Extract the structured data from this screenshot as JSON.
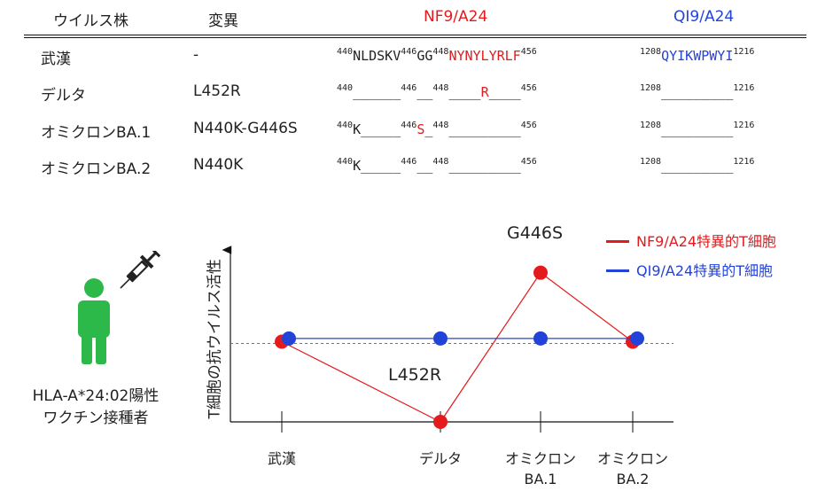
{
  "table": {
    "headers": {
      "strain": "ウイルス株",
      "mutation": "変異",
      "nf9": "NF9/A24",
      "qi9": "QI9/A24"
    },
    "rows": [
      {
        "name": "武漢",
        "mutation": "-",
        "nf9": [
          {
            "sup": "440"
          },
          {
            "text": "NLDSKV"
          },
          {
            "sup": "446"
          },
          {
            "text": "GG"
          },
          {
            "sup": "448"
          },
          {
            "text": "NYNYLYRLF",
            "color": "red"
          },
          {
            "sup": "456"
          }
        ],
        "qi9": [
          {
            "sup": "1208"
          },
          {
            "text": "QYIKWPWYI",
            "color": "blue"
          },
          {
            "sup": "1216"
          }
        ]
      },
      {
        "name": "デルタ",
        "mutation": "L452R",
        "nf9": [
          {
            "sup": "440"
          },
          {
            "text": "______"
          },
          {
            "sup": "446"
          },
          {
            "text": "__"
          },
          {
            "sup": "448"
          },
          {
            "text": "____"
          },
          {
            "text": "R",
            "color": "red"
          },
          {
            "text": "____"
          },
          {
            "sup": "456"
          }
        ],
        "qi9": [
          {
            "sup": "1208"
          },
          {
            "text": "_________"
          },
          {
            "sup": "1216"
          }
        ]
      },
      {
        "name": "オミクロンBA.1",
        "mutation": "N440K-G446S",
        "nf9": [
          {
            "sup": "440"
          },
          {
            "text": "K_____"
          },
          {
            "sup": "446"
          },
          {
            "text": "S",
            "color": "red"
          },
          {
            "text": "_"
          },
          {
            "sup": "448"
          },
          {
            "text": "_________"
          },
          {
            "sup": "456"
          }
        ],
        "qi9": [
          {
            "sup": "1208"
          },
          {
            "text": "_________"
          },
          {
            "sup": "1216"
          }
        ]
      },
      {
        "name": "オミクロンBA.2",
        "mutation": "N440K",
        "nf9": [
          {
            "sup": "440"
          },
          {
            "text": "K_____"
          },
          {
            "sup": "446"
          },
          {
            "text": "__"
          },
          {
            "sup": "448"
          },
          {
            "text": "_________"
          },
          {
            "sup": "456"
          }
        ],
        "qi9": [
          {
            "sup": "1208"
          },
          {
            "text": "_________"
          },
          {
            "sup": "1216"
          }
        ]
      }
    ]
  },
  "person": {
    "icon": "person-icon",
    "syringe_icon": "syringe-icon",
    "caption_line1": "HLA-A*24:02陽性",
    "caption_line2": "ワクチン接種者"
  },
  "colors": {
    "nf9": "#e41a1c",
    "qi9": "#2343d8",
    "person": "#2db84a",
    "baseline": "#4a78c8"
  },
  "chart_data": {
    "type": "line",
    "ylabel": "T細胞の抗ウイルス活性",
    "xlabel": "",
    "categories": [
      "武漢",
      "デルタ",
      "オミクロン\nBA.1",
      "オミクロン\nBA.2"
    ],
    "category_lines": [
      [
        "武漢"
      ],
      [
        "デルタ"
      ],
      [
        "オミクロン",
        "BA.1"
      ],
      [
        "オミクロン",
        "BA.2"
      ]
    ],
    "ylim": [
      0,
      100
    ],
    "baseline": 50,
    "series": [
      {
        "name": "NF9/A24特異的T細胞",
        "color": "#e41a1c",
        "values": [
          50,
          0,
          93,
          50
        ]
      },
      {
        "name": "QI9/A24特異的T細胞",
        "color": "#2343d8",
        "values": [
          52,
          52,
          52,
          52
        ]
      }
    ],
    "annotations": [
      {
        "text": "L452R",
        "category_index": 1
      },
      {
        "text": "G446S",
        "category_index": 2
      }
    ]
  }
}
